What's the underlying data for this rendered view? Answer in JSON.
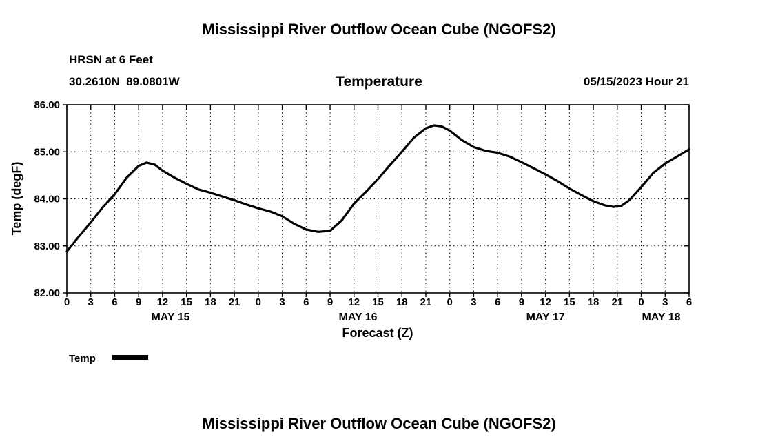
{
  "titles": {
    "top": "Mississippi River Outflow Ocean Cube (NGOFS2)",
    "bottom": "Mississippi River Outflow Ocean Cube (NGOFS2)"
  },
  "header": {
    "station": "HRSN at 6 Feet",
    "coordinates": "30.2610N  89.0801W",
    "plot_title": "Temperature",
    "datetime": "05/15/2023 Hour 21"
  },
  "legend": {
    "label": "Temp",
    "color": "#000000"
  },
  "chart_data": {
    "type": "line",
    "title": "Temperature",
    "xlabel": "Forecast (Z)",
    "ylabel": "Temp (degF)",
    "ylim": [
      82,
      86
    ],
    "xlim_hours": [
      0,
      78
    ],
    "grid": true,
    "legend_position": "bottom-left",
    "y_ticks": [
      82,
      83,
      84,
      85,
      86
    ],
    "y_tick_labels": [
      "82.00",
      "83.00",
      "84.00",
      "85.00",
      "86.00"
    ],
    "x_tick_hours": [
      0,
      3,
      6,
      9,
      12,
      15,
      18,
      21,
      24,
      27,
      30,
      33,
      36,
      39,
      42,
      45,
      48,
      51,
      54,
      57,
      60,
      63,
      66,
      69,
      72,
      75,
      78
    ],
    "x_tick_labels": [
      "0",
      "3",
      "6",
      "9",
      "12",
      "15",
      "18",
      "21",
      "0",
      "3",
      "6",
      "9",
      "12",
      "15",
      "18",
      "21",
      "0",
      "3",
      "6",
      "9",
      "12",
      "15",
      "18",
      "21",
      "0",
      "3",
      "6"
    ],
    "day_labels": [
      {
        "label": "MAY 15",
        "hour": 13
      },
      {
        "label": "MAY 16",
        "hour": 36.5
      },
      {
        "label": "MAY 17",
        "hour": 60
      },
      {
        "label": "MAY 18",
        "hour": 74.5
      }
    ],
    "series": [
      {
        "name": "Temp",
        "color": "#000000",
        "x": [
          0,
          1.5,
          3,
          4.5,
          6,
          7.5,
          9,
          10,
          11,
          12,
          13.5,
          15,
          16.5,
          18,
          19.5,
          21,
          22.5,
          24,
          25.5,
          27,
          28.5,
          30,
          31.5,
          33,
          34.5,
          36,
          37.5,
          39,
          40.5,
          42,
          43.5,
          45,
          46,
          47,
          48,
          49.5,
          51,
          52.5,
          54,
          55.5,
          57,
          58.5,
          60,
          61.5,
          63,
          64.5,
          66,
          67.5,
          68.5,
          69.5,
          70.5,
          72,
          73.5,
          75,
          76.5,
          78
        ],
        "y": [
          82.88,
          83.2,
          83.5,
          83.82,
          84.1,
          84.45,
          84.7,
          84.77,
          84.73,
          84.6,
          84.45,
          84.32,
          84.2,
          84.13,
          84.05,
          83.97,
          83.88,
          83.8,
          83.73,
          83.63,
          83.47,
          83.35,
          83.3,
          83.32,
          83.55,
          83.9,
          84.15,
          84.42,
          84.72,
          85.0,
          85.3,
          85.5,
          85.56,
          85.54,
          85.45,
          85.25,
          85.1,
          85.02,
          84.98,
          84.9,
          84.78,
          84.65,
          84.52,
          84.38,
          84.22,
          84.08,
          83.95,
          83.86,
          83.83,
          83.85,
          83.97,
          84.25,
          84.55,
          84.75,
          84.9,
          85.05
        ]
      }
    ]
  }
}
